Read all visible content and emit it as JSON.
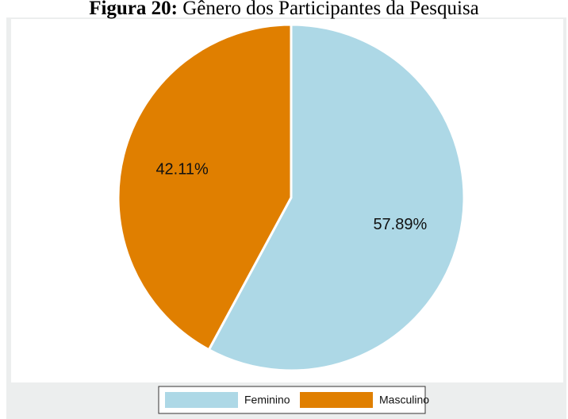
{
  "chart_data": {
    "type": "pie",
    "title_prefix": "Figura 20:",
    "title": "Gênero dos Participantes da Pesquisa",
    "categories": [
      "Feminino",
      "Masculino"
    ],
    "values": [
      57.89,
      42.11
    ],
    "value_labels": [
      "57.89%",
      "42.11%"
    ],
    "colors": [
      "#add8e6",
      "#e07f00"
    ],
    "legend": "bottom"
  }
}
